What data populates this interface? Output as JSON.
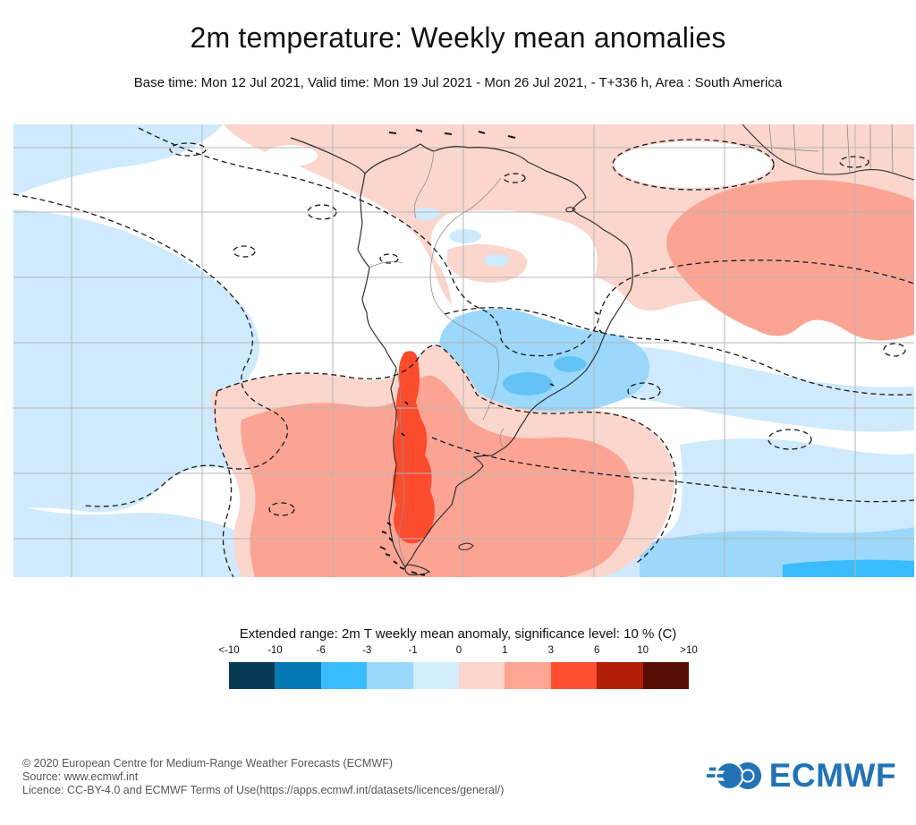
{
  "header": {
    "title": "2m temperature: Weekly mean anomalies",
    "subtitle": "Base time: Mon 12 Jul 2021, Valid time: Mon 19 Jul 2021 - Mon 26 Jul 2021, - T+336 h, Area : South America"
  },
  "legend": {
    "title": "Extended range: 2m T weekly mean anomaly, significance level: 10 % (C)",
    "ticks": [
      "<-10",
      "-10",
      "-6",
      "-3",
      "-1",
      "0",
      "1",
      "3",
      "6",
      "10",
      ">10"
    ],
    "colors": [
      "#053954",
      "#0478b2",
      "#38bbff",
      "#99d7fb",
      "#d3eefd",
      "#fdd4cb",
      "#fda493",
      "#ff4f33",
      "#b21d06",
      "#570c03"
    ]
  },
  "map_colors": {
    "light_pink": "#fad6cd",
    "salmon": "#fba494",
    "red": "#fb4c2e",
    "light_blue": "#cfeafc",
    "mid_blue": "#9bd8fb",
    "deep_blue": "#38bbff",
    "grid": "#b5b5b5",
    "coast": "#2f2f2f"
  },
  "footer": {
    "copyright": "© 2020 European Centre for Medium-Range Weather Forecasts (ECMWF)",
    "source": "Source: www.ecmwf.int",
    "licence": "Licence: CC-BY-4.0 and ECMWF Terms of Use(https://apps.ecmwf.int/datasets/licences/general/)"
  },
  "logo": {
    "text": "ECMWF",
    "color": "#2173b6"
  }
}
